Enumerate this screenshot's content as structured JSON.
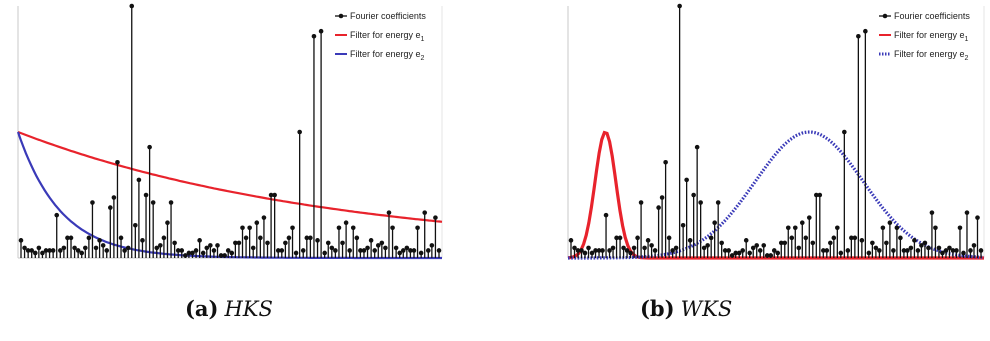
{
  "colors": {
    "stem": "#111111",
    "filter_e1": "#e8232c",
    "filter_e2": "#3a3ab8",
    "axis": "#c8c8c8"
  },
  "captions": {
    "a": {
      "tag": "(a)",
      "name": "HKS"
    },
    "b": {
      "tag": "(b)",
      "name": "WKS"
    }
  },
  "chart_data": [
    {
      "type": "line",
      "panel": "a",
      "title": "",
      "xlabel": "",
      "ylabel": "",
      "legend": {
        "placement": "top-right",
        "entries": [
          {
            "label": "Fourier coefficients",
            "style": "stem"
          },
          {
            "label": "Filter for energy e",
            "subscript": "1",
            "style": "line"
          },
          {
            "label": "Filter for energy e",
            "subscript": "2",
            "style": "line"
          }
        ]
      },
      "stems": [
        7,
        4,
        3,
        3,
        2,
        4,
        2,
        3,
        3,
        3,
        17,
        3,
        4,
        8,
        8,
        4,
        3,
        2,
        4,
        8,
        22,
        4,
        7,
        5,
        3,
        20,
        24,
        38,
        8,
        3,
        4,
        100,
        13,
        31,
        7,
        25,
        44,
        22,
        4,
        5,
        8,
        14,
        22,
        6,
        3,
        3,
        1,
        2,
        2,
        3,
        7,
        2,
        4,
        5,
        3,
        5,
        1,
        1,
        3,
        2,
        6,
        6,
        12,
        8,
        12,
        4,
        14,
        8,
        16,
        6,
        25,
        25,
        3,
        3,
        6,
        8,
        12,
        2,
        50,
        3,
        8,
        8,
        88,
        7,
        90,
        2,
        6,
        4,
        3,
        12,
        6,
        14,
        3,
        12,
        8,
        3,
        3,
        4,
        7,
        3,
        5,
        6,
        4,
        18,
        12,
        4,
        2,
        3,
        4,
        3,
        3,
        12,
        2,
        18,
        3,
        5,
        16,
        3
      ],
      "series": [
        {
          "name": "Filter for energy e1",
          "kind": "exp",
          "start": 50,
          "end": 2,
          "decay": 0.0032
        },
        {
          "name": "Filter for energy e2",
          "kind": "exp",
          "start": 50,
          "end": 0,
          "decay": 0.0233
        }
      ]
    },
    {
      "type": "line",
      "panel": "b",
      "title": "",
      "xlabel": "",
      "ylabel": "",
      "legend": {
        "placement": "top-right",
        "entries": [
          {
            "label": "Fourier coefficients",
            "style": "stem"
          },
          {
            "label": "Filter for energy e",
            "subscript": "1",
            "style": "line"
          },
          {
            "label": "Filter for energy e",
            "subscript": "2",
            "style": "dotted"
          }
        ]
      },
      "stems": [
        7,
        4,
        3,
        3,
        2,
        4,
        2,
        3,
        3,
        3,
        17,
        3,
        4,
        8,
        8,
        4,
        3,
        2,
        4,
        8,
        22,
        4,
        7,
        5,
        3,
        20,
        24,
        38,
        8,
        3,
        4,
        100,
        13,
        31,
        7,
        25,
        44,
        22,
        4,
        5,
        8,
        14,
        22,
        6,
        3,
        3,
        1,
        2,
        2,
        3,
        7,
        2,
        4,
        5,
        3,
        5,
        1,
        1,
        3,
        2,
        6,
        6,
        12,
        8,
        12,
        4,
        14,
        8,
        16,
        6,
        25,
        25,
        3,
        3,
        6,
        8,
        12,
        2,
        50,
        3,
        8,
        8,
        88,
        7,
        90,
        2,
        6,
        4,
        3,
        12,
        6,
        14,
        3,
        12,
        8,
        3,
        3,
        4,
        7,
        3,
        5,
        6,
        4,
        18,
        12,
        4,
        2,
        3,
        4,
        3,
        3,
        12,
        2,
        18,
        3,
        5,
        16,
        3
      ],
      "series": [
        {
          "name": "Filter for energy e1",
          "kind": "gauss",
          "peak": 50,
          "center": 0.09,
          "width": 0.025
        },
        {
          "name": "Filter for energy e2",
          "kind": "gauss",
          "peak": 50,
          "center": 0.58,
          "width": 0.13
        }
      ]
    }
  ]
}
